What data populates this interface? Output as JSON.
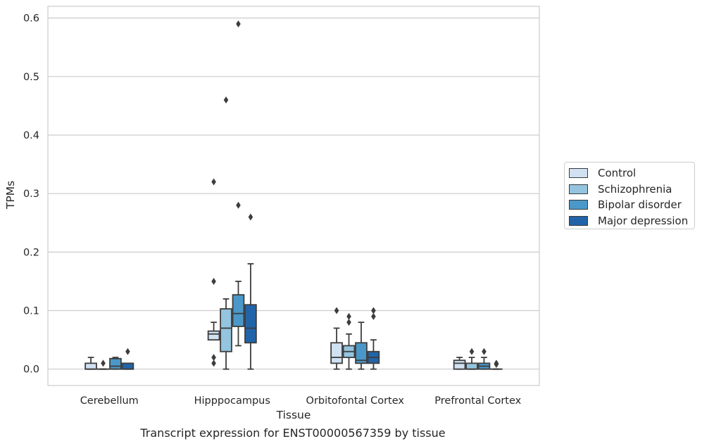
{
  "caption": "Transcript expression for ENST00000567359 by tissue",
  "chart_data": {
    "type": "box",
    "xlabel": "Tissue",
    "ylabel": "TPMs",
    "ylim": [
      -0.028,
      0.62
    ],
    "yticks": [
      0.0,
      0.1,
      0.2,
      0.3,
      0.4,
      0.5,
      0.6
    ],
    "grid": "horizontal",
    "legend_position": "right",
    "categories": [
      "Cerebellum",
      "Hipppocampus",
      "Orbitofontal Cortex",
      "Prefrontal Cortex"
    ],
    "series": [
      {
        "name": "Control",
        "color": "#d0e1f2",
        "boxes": [
          {
            "whisker_low": 0.0,
            "q1": 0.0,
            "median": 0.0,
            "q3": 0.01,
            "whisker_high": 0.02,
            "outliers": []
          },
          {
            "whisker_low": 0.05,
            "q1": 0.05,
            "median": 0.06,
            "q3": 0.065,
            "whisker_high": 0.08,
            "outliers": [
              0.32,
              0.15,
              0.02,
              0.01
            ]
          },
          {
            "whisker_low": 0.0,
            "q1": 0.01,
            "median": 0.02,
            "q3": 0.045,
            "whisker_high": 0.07,
            "outliers": [
              0.1
            ]
          },
          {
            "whisker_low": 0.0,
            "q1": 0.0,
            "median": 0.01,
            "q3": 0.015,
            "whisker_high": 0.02,
            "outliers": []
          }
        ]
      },
      {
        "name": "Schizophrenia",
        "color": "#94c4df",
        "boxes": [
          {
            "whisker_low": 0.0,
            "q1": 0.0,
            "median": 0.0,
            "q3": 0.0,
            "whisker_high": 0.0,
            "outliers": [
              0.01
            ]
          },
          {
            "whisker_low": 0.0,
            "q1": 0.03,
            "median": 0.07,
            "q3": 0.103,
            "whisker_high": 0.12,
            "outliers": [
              0.46
            ]
          },
          {
            "whisker_low": 0.0,
            "q1": 0.02,
            "median": 0.03,
            "q3": 0.04,
            "whisker_high": 0.06,
            "outliers": [
              0.09,
              0.08
            ]
          },
          {
            "whisker_low": 0.0,
            "q1": 0.0,
            "median": 0.0,
            "q3": 0.01,
            "whisker_high": 0.02,
            "outliers": [
              0.03
            ]
          }
        ]
      },
      {
        "name": "Bipolar disorder",
        "color": "#4a98c9",
        "boxes": [
          {
            "whisker_low": 0.0,
            "q1": 0.0,
            "median": 0.005,
            "q3": 0.018,
            "whisker_high": 0.02,
            "outliers": []
          },
          {
            "whisker_low": 0.04,
            "q1": 0.073,
            "median": 0.095,
            "q3": 0.127,
            "whisker_high": 0.15,
            "outliers": [
              0.59,
              0.28
            ]
          },
          {
            "whisker_low": 0.0,
            "q1": 0.01,
            "median": 0.015,
            "q3": 0.045,
            "whisker_high": 0.08,
            "outliers": []
          },
          {
            "whisker_low": 0.0,
            "q1": 0.0,
            "median": 0.005,
            "q3": 0.01,
            "whisker_high": 0.02,
            "outliers": [
              0.03
            ]
          }
        ]
      },
      {
        "name": "Major depression",
        "color": "#2264a8",
        "boxes": [
          {
            "whisker_low": 0.0,
            "q1": 0.0,
            "median": 0.0,
            "q3": 0.01,
            "whisker_high": 0.01,
            "outliers": [
              0.03
            ]
          },
          {
            "whisker_low": 0.0,
            "q1": 0.045,
            "median": 0.07,
            "q3": 0.11,
            "whisker_high": 0.18,
            "outliers": [
              0.26
            ]
          },
          {
            "whisker_low": 0.0,
            "q1": 0.01,
            "median": 0.02,
            "q3": 0.03,
            "whisker_high": 0.05,
            "outliers": [
              0.1,
              0.09
            ]
          },
          {
            "whisker_low": 0.0,
            "q1": 0.0,
            "median": 0.0,
            "q3": 0.0,
            "whisker_high": 0.0,
            "outliers": [
              0.01,
              0.008
            ]
          }
        ]
      }
    ]
  }
}
